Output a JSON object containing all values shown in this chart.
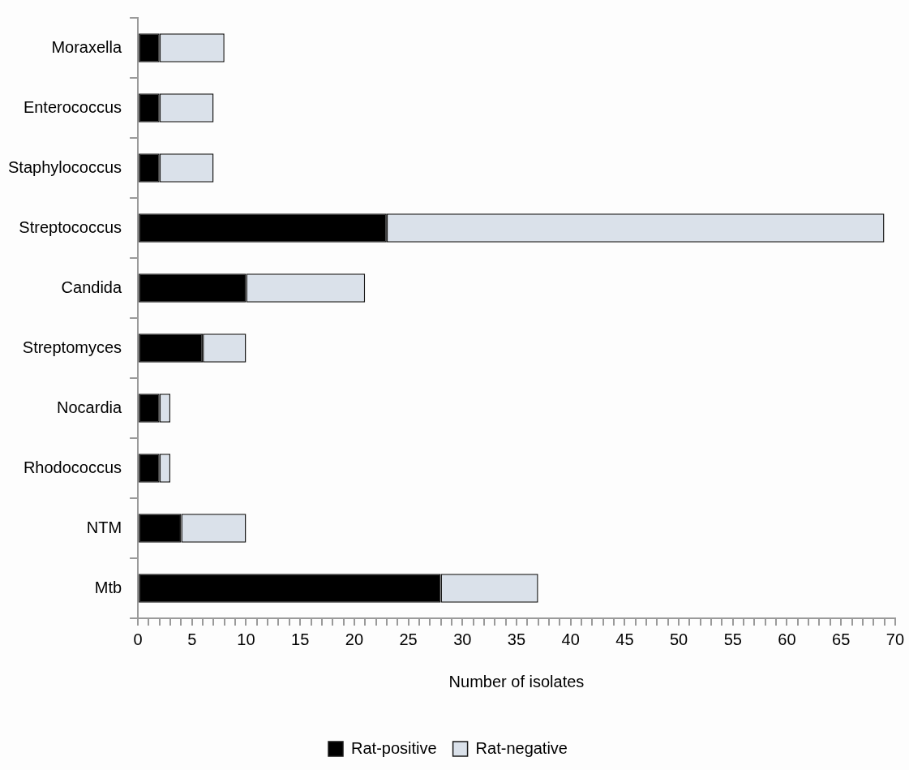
{
  "chart_data": {
    "type": "bar",
    "orientation": "horizontal",
    "stacked": true,
    "xlabel": "Number of isolates",
    "categories": [
      "Moraxella",
      "Enterococcus",
      "Staphylococcus",
      "Streptococcus",
      "Candida",
      "Streptomyces",
      "Nocardia",
      "Rhodococcus",
      "NTM",
      "Mtb"
    ],
    "series": [
      {
        "name": "Rat-positive",
        "color": "#000000",
        "values": [
          2,
          2,
          2,
          23,
          10,
          6,
          2,
          2,
          4,
          28
        ]
      },
      {
        "name": "Rat-negative",
        "color": "#dae1ea",
        "values": [
          6,
          5,
          5,
          46,
          11,
          4,
          1,
          1,
          6,
          9
        ]
      }
    ],
    "xlim": [
      0,
      70
    ],
    "xticks": [
      0,
      {
        "value": 1,
        "label": null
      },
      {
        "value": 2,
        "label": null
      },
      {
        "value": 3,
        "label": null
      },
      {
        "value": 4,
        "label": null
      },
      5,
      {
        "value": 6,
        "label": null
      },
      {
        "value": 7,
        "label": null
      },
      {
        "value": 8,
        "label": null
      },
      {
        "value": 9,
        "label": null
      },
      10,
      {
        "value": 11,
        "label": null
      },
      {
        "value": 12,
        "label": null
      },
      {
        "value": 13,
        "label": null
      },
      {
        "value": 14,
        "label": null
      },
      15,
      {
        "value": 16,
        "label": null
      },
      {
        "value": 17,
        "label": null
      },
      {
        "value": 18,
        "label": null
      },
      {
        "value": 19,
        "label": null
      },
      20,
      {
        "value": 21,
        "label": null
      },
      {
        "value": 22,
        "label": null
      },
      {
        "value": 23,
        "label": null
      },
      {
        "value": 24,
        "label": null
      },
      25,
      {
        "value": 26,
        "label": null
      },
      {
        "value": 27,
        "label": null
      },
      {
        "value": 28,
        "label": null
      },
      {
        "value": 29,
        "label": null
      },
      30,
      {
        "value": 31,
        "label": null
      },
      {
        "value": 32,
        "label": null
      },
      {
        "value": 33,
        "label": null
      },
      {
        "value": 34,
        "label": null
      },
      35,
      {
        "value": 36,
        "label": null
      },
      {
        "value": 37,
        "label": null
      },
      {
        "value": 38,
        "label": null
      },
      {
        "value": 39,
        "label": null
      },
      40,
      {
        "value": 41,
        "label": null
      },
      {
        "value": 42,
        "label": null
      },
      {
        "value": 43,
        "label": null
      },
      {
        "value": 44,
        "label": null
      },
      45,
      {
        "value": 46,
        "label": null
      },
      {
        "value": 47,
        "label": null
      },
      {
        "value": 48,
        "label": null
      },
      {
        "value": 49,
        "label": null
      },
      50,
      {
        "value": 51,
        "label": null
      },
      {
        "value": 52,
        "label": null
      },
      {
        "value": 53,
        "label": null
      },
      {
        "value": 54,
        "label": null
      },
      55,
      {
        "value": 56,
        "label": null
      },
      {
        "value": 57,
        "label": null
      },
      {
        "value": 58,
        "label": null
      },
      {
        "value": 59,
        "label": null
      },
      60,
      {
        "value": 61,
        "label": null
      },
      {
        "value": 62,
        "label": null
      },
      {
        "value": 63,
        "label": null
      },
      {
        "value": 64,
        "label": null
      },
      65,
      {
        "value": 66,
        "label": null
      },
      {
        "value": 67,
        "label": null
      },
      {
        "value": 68,
        "label": null
      },
      {
        "value": 69,
        "label": null
      },
      70
    ],
    "grid": false,
    "legend": "bottom"
  }
}
